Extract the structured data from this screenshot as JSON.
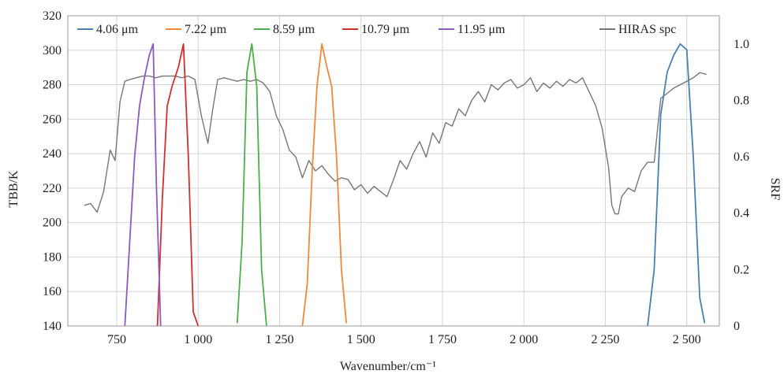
{
  "chart_data": {
    "type": "line",
    "xlabel": "Wavenumber/cm⁻¹",
    "ylabel_left": "TBB/K",
    "ylabel_right": "SRF",
    "xlim": [
      600,
      2600
    ],
    "ylim_left": [
      140,
      320
    ],
    "ylim_right": [
      0,
      1.1
    ],
    "grid": true,
    "legend": "top",
    "x_ticks": [
      750,
      1000,
      1250,
      1500,
      1750,
      2000,
      2250,
      2500
    ],
    "x_tick_labels": [
      "750",
      "1 000",
      "1 250",
      "1 500",
      "1 750",
      "2 000",
      "2 250",
      "2 500"
    ],
    "y_left_ticks": [
      140,
      160,
      180,
      200,
      220,
      240,
      260,
      280,
      300,
      320
    ],
    "y_left_tick_labels": [
      "140",
      "160",
      "180",
      "200",
      "220",
      "240",
      "260",
      "280",
      "300",
      "320"
    ],
    "y_right_ticks": [
      0,
      0.2,
      0.4,
      0.6,
      0.8,
      1.0
    ],
    "y_right_tick_labels": [
      "0",
      "0.2",
      "0.4",
      "0.6",
      "0.8",
      "1.0"
    ],
    "series": [
      {
        "name": "4.06 μm",
        "axis": "right",
        "color": "#4a7fb0",
        "x": [
          2380,
          2400,
          2420,
          2440,
          2460,
          2480,
          2500,
          2520,
          2540,
          2555
        ],
        "y": [
          0.0,
          0.2,
          0.75,
          0.9,
          0.96,
          1.0,
          0.98,
          0.6,
          0.1,
          0.01
        ]
      },
      {
        "name": "7.22 μm",
        "axis": "right",
        "color": "#f0883e",
        "x": [
          1320,
          1335,
          1350,
          1365,
          1380,
          1395,
          1410,
          1425,
          1440,
          1455
        ],
        "y": [
          0.0,
          0.15,
          0.55,
          0.85,
          1.0,
          0.92,
          0.85,
          0.6,
          0.2,
          0.01
        ]
      },
      {
        "name": "8.59 μm",
        "axis": "right",
        "color": "#4cae4c",
        "x": [
          1120,
          1135,
          1150,
          1165,
          1180,
          1195,
          1210
        ],
        "y": [
          0.01,
          0.3,
          0.9,
          1.0,
          0.85,
          0.2,
          0.0
        ]
      },
      {
        "name": "10.79 μm",
        "axis": "right",
        "color": "#d03030",
        "x": [
          875,
          890,
          905,
          920,
          940,
          955,
          970,
          985,
          1000
        ],
        "y": [
          0.0,
          0.45,
          0.78,
          0.85,
          0.92,
          1.0,
          0.6,
          0.05,
          0.0
        ]
      },
      {
        "name": "11.95 μm",
        "axis": "right",
        "color": "#8a5cc0",
        "x": [
          775,
          790,
          805,
          820,
          835,
          850,
          862,
          872,
          885
        ],
        "y": [
          0.0,
          0.3,
          0.6,
          0.78,
          0.88,
          0.96,
          1.0,
          0.5,
          0.0
        ]
      },
      {
        "name": "HIRAS spc",
        "axis": "left",
        "color": "#777777",
        "x": [
          650,
          670,
          690,
          710,
          730,
          745,
          760,
          775,
          790,
          810,
          830,
          850,
          870,
          890,
          910,
          930,
          950,
          970,
          990,
          1010,
          1030,
          1045,
          1060,
          1080,
          1100,
          1120,
          1140,
          1160,
          1180,
          1200,
          1220,
          1240,
          1260,
          1280,
          1300,
          1320,
          1340,
          1360,
          1380,
          1400,
          1420,
          1440,
          1460,
          1480,
          1500,
          1520,
          1540,
          1560,
          1580,
          1600,
          1620,
          1640,
          1660,
          1680,
          1700,
          1720,
          1740,
          1760,
          1780,
          1800,
          1820,
          1840,
          1860,
          1880,
          1900,
          1920,
          1940,
          1960,
          1980,
          2000,
          2020,
          2040,
          2060,
          2080,
          2100,
          2120,
          2140,
          2160,
          2180,
          2200,
          2220,
          2240,
          2260,
          2270,
          2280,
          2290,
          2300,
          2320,
          2340,
          2360,
          2380,
          2400,
          2420,
          2440,
          2460,
          2480,
          2500,
          2520,
          2540,
          2560
        ],
        "y": [
          210,
          211,
          206,
          218,
          242,
          236,
          270,
          282,
          283,
          284,
          285,
          285,
          284,
          285,
          285,
          285,
          284,
          285,
          283,
          262,
          246,
          266,
          283,
          284,
          283,
          282,
          283,
          282,
          283,
          281,
          276,
          262,
          254,
          242,
          238,
          226,
          236,
          230,
          233,
          228,
          224,
          226,
          225,
          219,
          222,
          217,
          221,
          218,
          215,
          225,
          236,
          231,
          240,
          247,
          238,
          252,
          246,
          258,
          256,
          266,
          262,
          271,
          276,
          270,
          280,
          277,
          281,
          283,
          278,
          280,
          284,
          276,
          281,
          278,
          282,
          279,
          283,
          281,
          284,
          276,
          268,
          255,
          232,
          210,
          205,
          205,
          215,
          220,
          218,
          230,
          235,
          235,
          272,
          275,
          278,
          280,
          282,
          284,
          287,
          286
        ]
      }
    ]
  }
}
